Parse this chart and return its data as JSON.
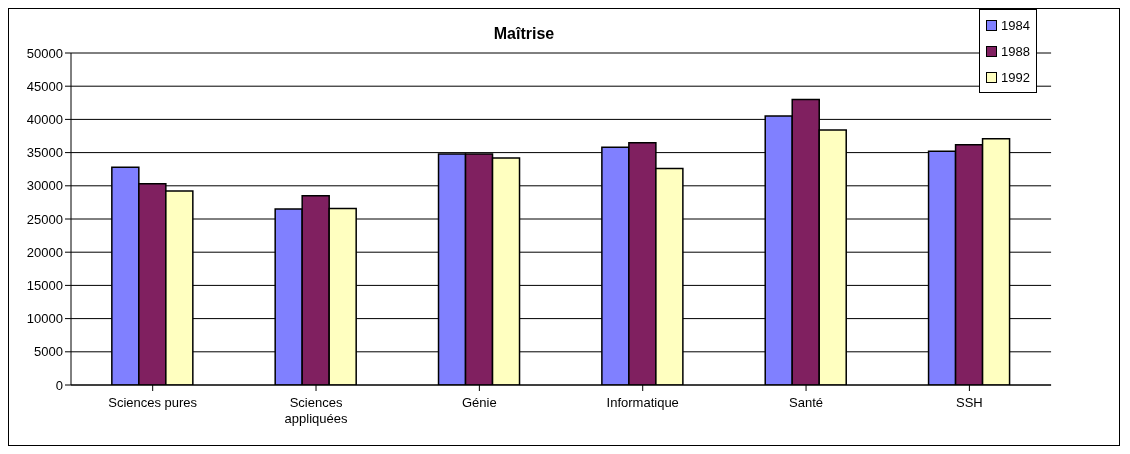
{
  "chart_data": {
    "type": "bar",
    "title": "Maîtrise",
    "categories": [
      "Sciences pures",
      "Sciences appliquées",
      "Génie",
      "Informatique",
      "Santé",
      "SSH"
    ],
    "series": [
      {
        "name": "1984",
        "color": "#8080ff",
        "values": [
          32800,
          26500,
          34800,
          35800,
          40500,
          35200
        ]
      },
      {
        "name": "1988",
        "color": "#802060",
        "values": [
          30300,
          28500,
          34800,
          36500,
          43000,
          36200
        ]
      },
      {
        "name": "1992",
        "color": "#ffffc0",
        "values": [
          29200,
          26600,
          34200,
          32600,
          38400,
          37100
        ]
      }
    ],
    "ylim": [
      0,
      50000
    ],
    "yticks": [
      0,
      5000,
      10000,
      15000,
      20000,
      25000,
      30000,
      35000,
      40000,
      45000,
      50000
    ],
    "grid": "y",
    "legend": "top right"
  }
}
